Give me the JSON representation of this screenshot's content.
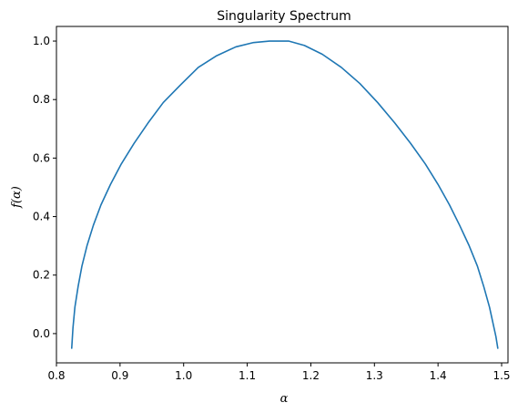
{
  "chart_data": {
    "type": "line",
    "title": "Singularity Spectrum",
    "xlabel": "α",
    "ylabel": "f(α)",
    "xlim": [
      0.8,
      1.51
    ],
    "ylim": [
      -0.1,
      1.05
    ],
    "xticks": [
      0.8,
      0.9,
      1.0,
      1.1,
      1.2,
      1.3,
      1.4,
      1.5
    ],
    "xtick_labels": [
      "0.8",
      "0.9",
      "1.0",
      "1.1",
      "1.2",
      "1.3",
      "1.4",
      "1.5"
    ],
    "yticks": [
      0.0,
      0.2,
      0.4,
      0.6,
      0.8,
      1.0
    ],
    "ytick_labels": [
      "0.0",
      "0.2",
      "0.4",
      "0.6",
      "0.8",
      "1.0"
    ],
    "grid": false,
    "series": [
      {
        "name": "f(alpha)",
        "color": "#1f77b4",
        "x": [
          0.824,
          0.826,
          0.829,
          0.834,
          0.84,
          0.848,
          0.858,
          0.87,
          0.885,
          0.902,
          0.922,
          0.944,
          0.968,
          0.995,
          1.023,
          1.052,
          1.082,
          1.11,
          1.135,
          1.15,
          1.165,
          1.19,
          1.218,
          1.248,
          1.277,
          1.305,
          1.332,
          1.357,
          1.38,
          1.4,
          1.418,
          1.434,
          1.449,
          1.462,
          1.472,
          1.481,
          1.487,
          1.491,
          1.494
        ],
        "y": [
          -0.05,
          0.02,
          0.09,
          0.16,
          0.23,
          0.3,
          0.37,
          0.44,
          0.51,
          0.58,
          0.65,
          0.72,
          0.79,
          0.85,
          0.91,
          0.95,
          0.98,
          0.995,
          1.0,
          1.0,
          1.0,
          0.985,
          0.955,
          0.91,
          0.855,
          0.79,
          0.72,
          0.65,
          0.58,
          0.51,
          0.44,
          0.37,
          0.3,
          0.23,
          0.16,
          0.09,
          0.03,
          -0.01,
          -0.05
        ]
      }
    ]
  }
}
